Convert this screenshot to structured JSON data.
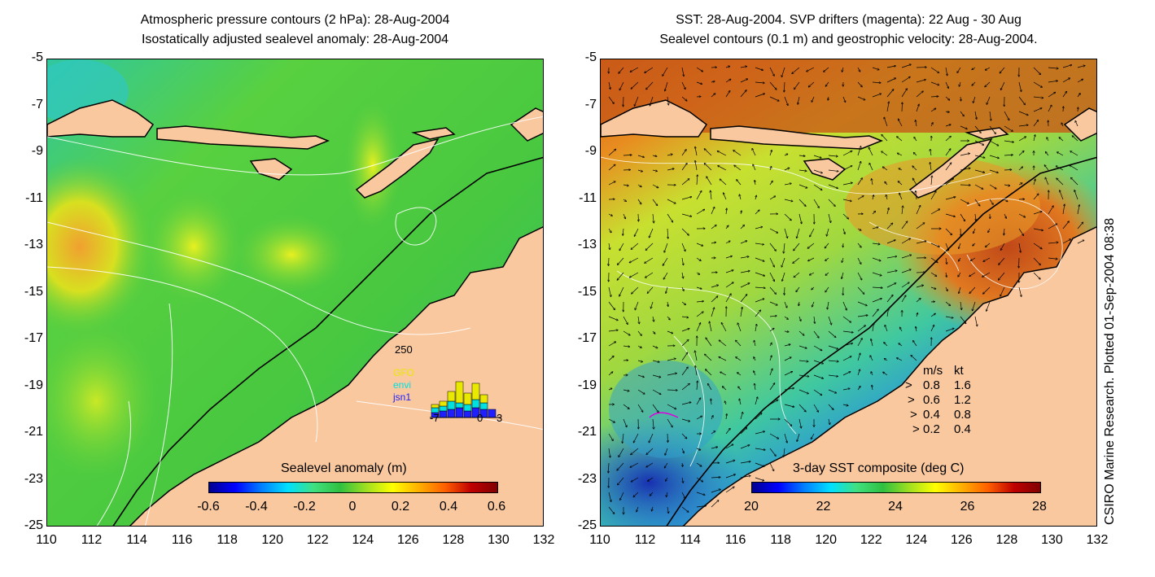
{
  "left_panel": {
    "title_line1": "Atmospheric pressure contours (2 hPa): 28-Aug-2004",
    "title_line2": "Isostatically adjusted sealevel anomaly: 28-Aug-2004",
    "colorbar_title": "Sealevel anomaly (m)",
    "colorbar_ticks": [
      "-0.6",
      "-0.4",
      "-0.2",
      "0",
      "0.2",
      "0.4",
      "0.6"
    ],
    "inset": {
      "ymax_label": "250",
      "legend": [
        "GFO",
        "envi",
        "jsn1"
      ],
      "legend_colors": [
        "#e8e800",
        "#00e0e0",
        "#2020ff"
      ],
      "x_ticks": [
        "-7",
        "0",
        "3"
      ]
    }
  },
  "right_panel": {
    "title_line1": "SST: 28-Aug-2004. SVP drifters (magenta): 22 Aug - 30 Aug",
    "title_line2": "Sealevel contours (0.1 m) and geostrophic velocity: 28-Aug-2004.",
    "colorbar_title": "3-day SST composite (deg C)",
    "colorbar_ticks": [
      "20",
      "22",
      "24",
      "26",
      "28"
    ],
    "velocity_legend": {
      "header_ms": "m/s",
      "header_kt": "kt",
      "rows": [
        {
          "ms": "0.8",
          "kt": "1.6"
        },
        {
          "ms": "0.6",
          "kt": "1.2"
        },
        {
          "ms": "0.4",
          "kt": "0.8"
        },
        {
          "ms": "0.2",
          "kt": "0.4"
        }
      ]
    }
  },
  "axes": {
    "y_ticks": [
      "-5",
      "-7",
      "-9",
      "-11",
      "-13",
      "-15",
      "-17",
      "-19",
      "-21",
      "-23",
      "-25"
    ],
    "x_ticks": [
      "110",
      "112",
      "114",
      "116",
      "118",
      "120",
      "122",
      "124",
      "126",
      "128",
      "130",
      "132"
    ]
  },
  "credit": "CSIRO Marine Research. Plotted 01-Sep-2004 08:38",
  "colors": {
    "land": "#f9c89f",
    "ocean_sla": "#3ec43e",
    "ocean_sst_warm": "#c8501a",
    "ocean_sst_cool": "#2050d0"
  }
}
